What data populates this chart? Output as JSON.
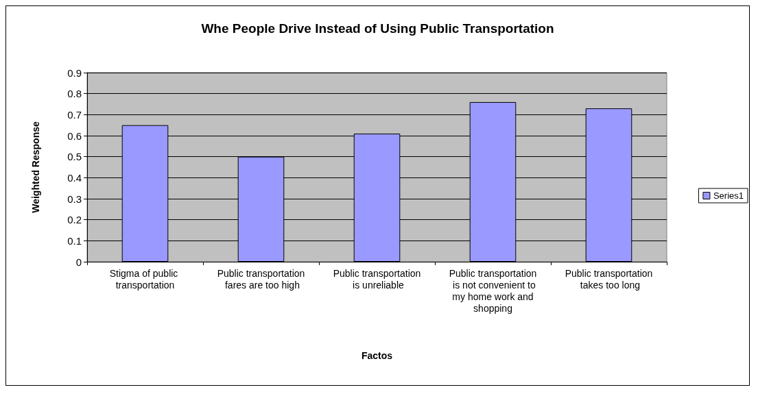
{
  "chart_data": {
    "type": "bar",
    "title": "Whe People Drive Instead of Using Public Transportation",
    "xlabel": "Factos",
    "ylabel": "Weighted Response",
    "categories": [
      "Stigma of public transportation",
      "Public transportation fares are too high",
      "Public transportation is unreliable",
      "Public transportation is not convenient to my home work and shopping",
      "Public transportation takes too long"
    ],
    "series": [
      {
        "name": "Series1",
        "color": "#9999ff",
        "values": [
          0.65,
          0.5,
          0.61,
          0.76,
          0.73
        ]
      }
    ],
    "ylim": [
      0,
      0.9
    ],
    "yticks": [
      0,
      0.1,
      0.2,
      0.3,
      0.4,
      0.5,
      0.6,
      0.7,
      0.8,
      0.9
    ],
    "grid": "y",
    "legend": "right"
  }
}
